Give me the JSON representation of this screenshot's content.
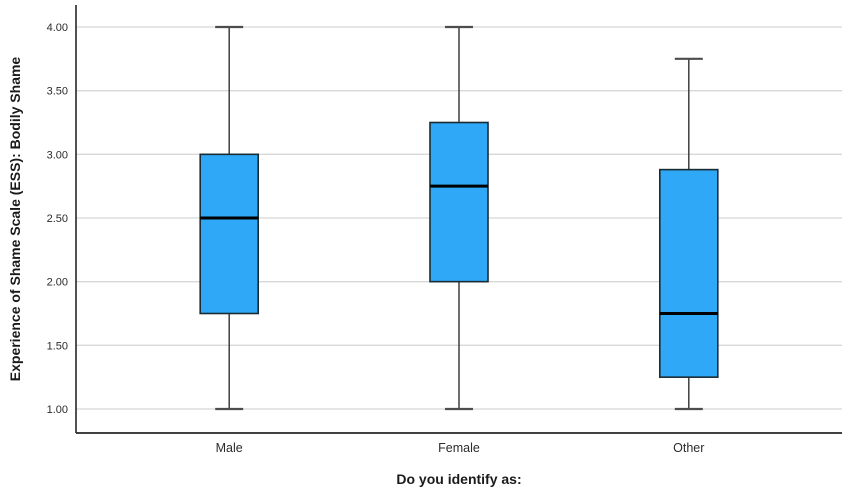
{
  "figure": {
    "background": "#ffffff"
  },
  "chart_data": {
    "type": "boxplot",
    "title": "",
    "xlabel": "Do you identify as:",
    "ylabel": "Experience of Shame Scale (ESS): Bodily Shame",
    "categories": [
      "Male",
      "Female",
      "Other"
    ],
    "series": [
      {
        "name": "Male",
        "min": 1.0,
        "q1": 1.75,
        "median": 2.5,
        "q3": 3.0,
        "max": 4.0
      },
      {
        "name": "Female",
        "min": 1.0,
        "q1": 2.0,
        "median": 2.75,
        "q3": 3.25,
        "max": 4.0
      },
      {
        "name": "Other",
        "min": 1.0,
        "q1": 1.25,
        "median": 1.75,
        "q3": 2.88,
        "max": 3.75
      }
    ],
    "ytick_labels": [
      "1.00",
      "1.50",
      "2.00",
      "2.50",
      "3.00",
      "3.50",
      "4.00"
    ],
    "ytick_values": [
      1.0,
      1.5,
      2.0,
      2.5,
      3.0,
      3.5,
      4.0
    ],
    "ylim": [
      1.0,
      4.0
    ],
    "grid": true,
    "legend": "none",
    "colors": {
      "box_fill": "#2EA8F7",
      "box_stroke": "#1b2b33",
      "median": "#000000",
      "whisker": "#3f3f3f",
      "cap": "#4d4d4d",
      "gridline": "#d8d8d8",
      "axis": "#262626",
      "text": "#2b2b2b"
    }
  }
}
